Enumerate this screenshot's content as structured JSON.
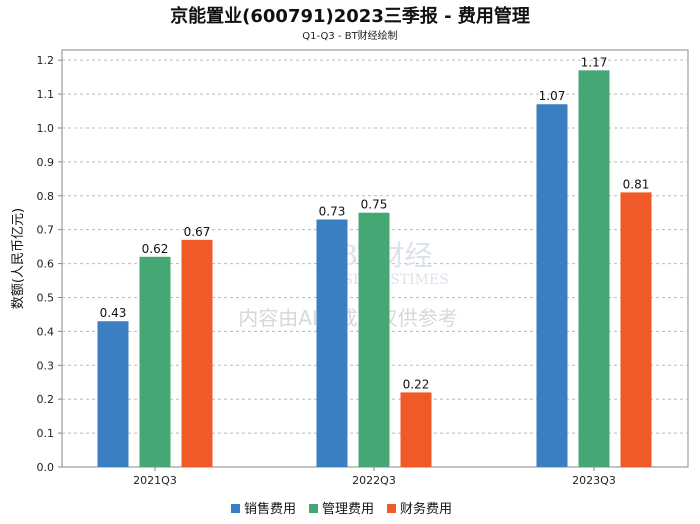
{
  "chart_data": {
    "type": "bar",
    "title": "京能置业(600791)2023三季报 - 费用管理",
    "subtitle": "Q1-Q3 - BT财经绘制",
    "xlabel": "",
    "ylabel": "数额(人民币亿元)",
    "ylim": [
      0,
      1.23
    ],
    "yticks": [
      "0.0",
      "0.1",
      "0.2",
      "0.3",
      "0.4",
      "0.5",
      "0.6",
      "0.7",
      "0.8",
      "0.9",
      "1.0",
      "1.1",
      "1.2"
    ],
    "categories": [
      "2021Q3",
      "2022Q3",
      "2023Q3"
    ],
    "series": [
      {
        "name": "销售费用",
        "color": "#3a7fc1",
        "values": [
          0.43,
          0.73,
          1.07
        ],
        "labels": [
          "0.43",
          "0.73",
          "1.07"
        ]
      },
      {
        "name": "管理费用",
        "color": "#45a874",
        "values": [
          0.62,
          0.75,
          1.17
        ],
        "labels": [
          "0.62",
          "0.75",
          "1.17"
        ]
      },
      {
        "name": "财务费用",
        "color": "#f05a28",
        "values": [
          0.67,
          0.22,
          0.81
        ],
        "labels": [
          "0.67",
          "0.22",
          "0.81"
        ]
      }
    ],
    "grid": true,
    "legend": "bottom",
    "watermark": {
      "brand": "BT财经",
      "brand_en": "BUSINESSTIMES",
      "notice": "内容由AI生成，仅供参考"
    }
  }
}
